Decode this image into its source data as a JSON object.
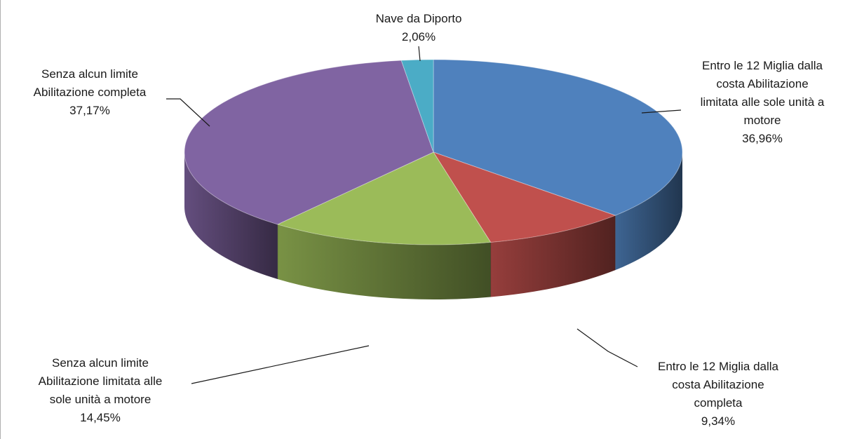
{
  "chart_data": {
    "type": "pie",
    "style": "3d",
    "slices": [
      {
        "label": [
          "Entro le 12 Miglia dalla",
          "costa Abilitazione",
          "limitata alle sole unità a",
          "motore"
        ],
        "pct_text": "36,96%",
        "value": 36.96,
        "color": "#4f81bd"
      },
      {
        "label": [
          "Entro le 12 Miglia dalla",
          "costa Abilitazione",
          "completa"
        ],
        "pct_text": "9,34%",
        "value": 9.34,
        "color": "#c0504d"
      },
      {
        "label": [
          "Senza alcun limite",
          "Abilitazione limitata alle",
          "sole unità a motore"
        ],
        "pct_text": "14,45%",
        "value": 14.45,
        "color": "#9bbb59"
      },
      {
        "label": [
          "Senza alcun limite",
          "Abilitazione completa"
        ],
        "pct_text": "37,17%",
        "value": 37.17,
        "color": "#8064a2"
      },
      {
        "label": [
          "Nave da Diporto"
        ],
        "pct_text": "2,06%",
        "value": 2.06,
        "color": "#4bacc6"
      }
    ]
  }
}
